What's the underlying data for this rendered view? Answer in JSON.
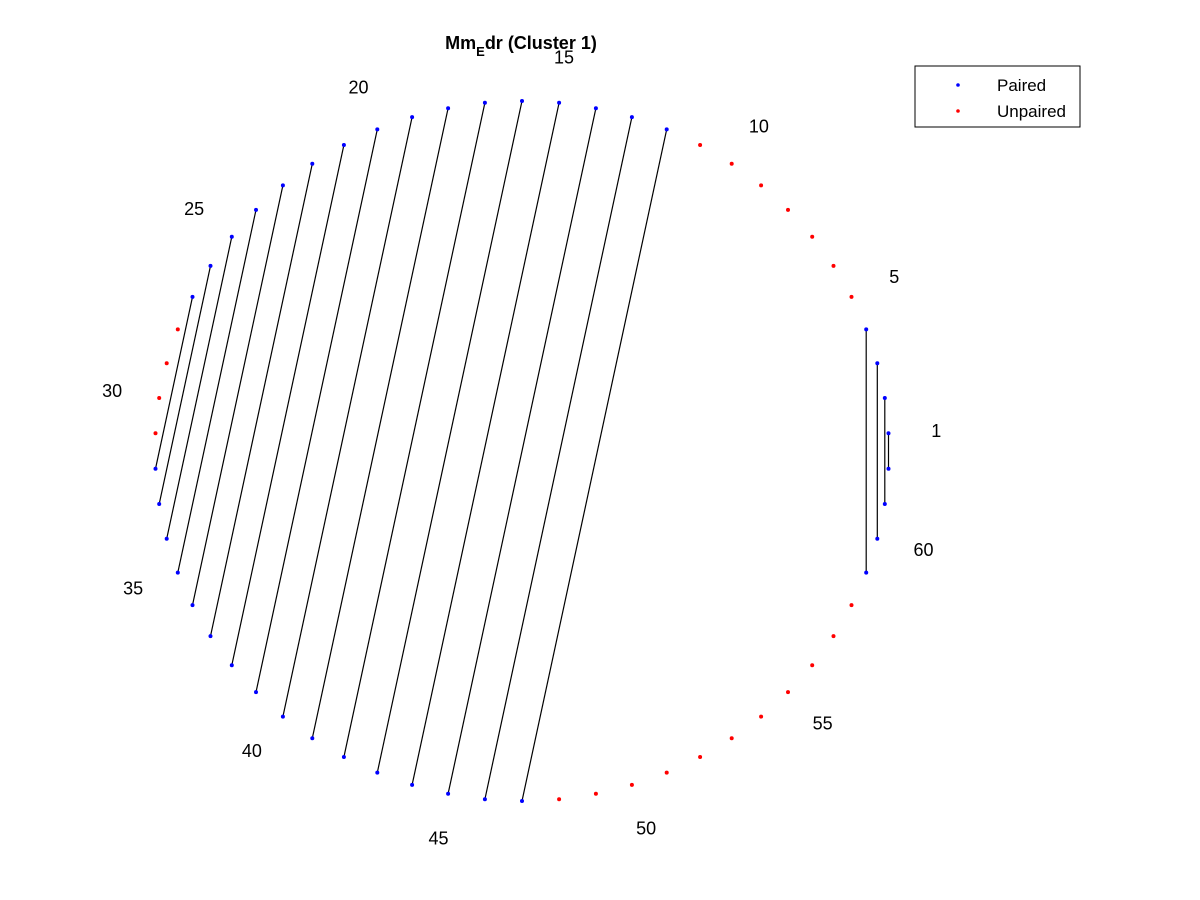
{
  "chart_data": {
    "type": "arc-diagram",
    "title": {
      "prefix": "Mm",
      "subscript": "E",
      "suffix": "dr (Cluster 1)"
    },
    "n_positions": 62,
    "labeled_positions": [
      "1",
      "5",
      "10",
      "15",
      "20",
      "25",
      "30",
      "35",
      "40",
      "45",
      "50",
      "55",
      "60"
    ],
    "pairs": [
      [
        1,
        62
      ],
      [
        2,
        61
      ],
      [
        3,
        60
      ],
      [
        4,
        59
      ],
      [
        12,
        47
      ],
      [
        13,
        46
      ],
      [
        14,
        45
      ],
      [
        15,
        44
      ],
      [
        16,
        43
      ],
      [
        17,
        42
      ],
      [
        18,
        41
      ],
      [
        19,
        40
      ],
      [
        20,
        39
      ],
      [
        21,
        38
      ],
      [
        22,
        37
      ],
      [
        23,
        36
      ],
      [
        24,
        35
      ],
      [
        25,
        34
      ],
      [
        26,
        33
      ],
      [
        27,
        32
      ]
    ],
    "legend": {
      "placement": "top-right",
      "entries": [
        {
          "label": "Paired",
          "color": "#0000ff"
        },
        {
          "label": "Unpaired",
          "color": "#ff0000"
        }
      ]
    },
    "colors": {
      "paired": "#0000ff",
      "unpaired": "#ff0000",
      "link": "#000000"
    }
  }
}
